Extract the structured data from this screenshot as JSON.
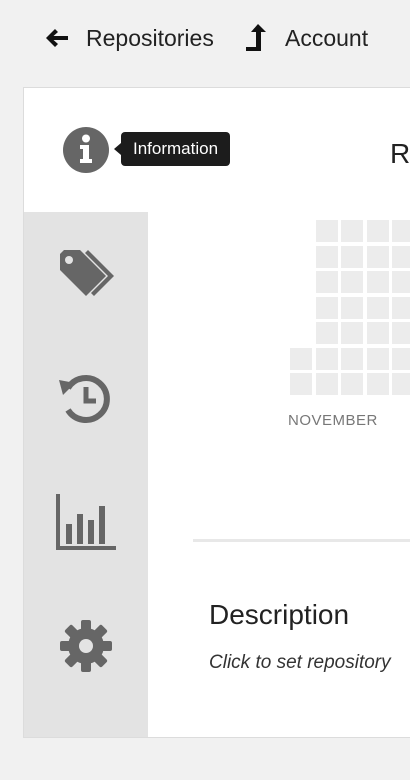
{
  "nav": {
    "back_label": "Repositories",
    "account_label": "Account"
  },
  "info": {
    "tooltip": "Information"
  },
  "repo": {
    "title_fragment": "R"
  },
  "sidebar": {
    "items": [
      {
        "icon": "tags-icon"
      },
      {
        "icon": "history-icon"
      },
      {
        "icon": "bar-chart-icon"
      },
      {
        "icon": "gear-icon"
      }
    ]
  },
  "calendar": {
    "month_label": "NOVEMBER"
  },
  "description": {
    "heading": "Description",
    "placeholder": "Click to set repository"
  },
  "colors": {
    "icon_gray": "#666666",
    "sidebar_bg": "#e3e3e3",
    "tooltip_bg": "#1c1c1c",
    "page_bg": "#f1f1f1",
    "cell_gray": "#ececec"
  }
}
